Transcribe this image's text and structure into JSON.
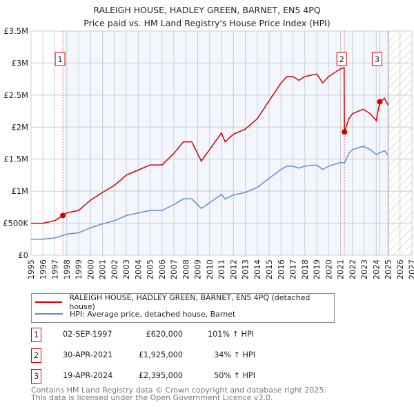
{
  "chart_data": {
    "type": "line",
    "title": "RALEIGH HOUSE, HADLEY GREEN, BARNET, EN5 4PQ",
    "subtitle": "Price paid vs. HM Land Registry's House Price Index (HPI)",
    "xlim": [
      1995,
      2027
    ],
    "ylim": [
      0,
      3500000
    ],
    "x_ticks": [
      "1995",
      "1996",
      "1997",
      "1998",
      "1999",
      "2000",
      "2001",
      "2002",
      "2003",
      "2004",
      "2005",
      "2006",
      "2007",
      "2008",
      "2009",
      "2010",
      "2011",
      "2012",
      "2013",
      "2014",
      "2015",
      "2016",
      "2017",
      "2018",
      "2019",
      "2020",
      "2021",
      "2022",
      "2023",
      "2024",
      "2025",
      "2026",
      "2027"
    ],
    "y_ticks": [
      {
        "v": 0,
        "label": "£0"
      },
      {
        "v": 500000,
        "label": "£500K"
      },
      {
        "v": 1000000,
        "label": "£1M"
      },
      {
        "v": 1500000,
        "label": "£1.5M"
      },
      {
        "v": 2000000,
        "label": "£2M"
      },
      {
        "v": 2500000,
        "label": "£2.5M"
      },
      {
        "v": 3000000,
        "label": "£3M"
      },
      {
        "v": 3500000,
        "label": "£3.5M"
      }
    ],
    "grid": true,
    "forecast_from": 2025.0,
    "series": [
      {
        "name": "RALEIGH HOUSE, HADLEY GREEN, BARNET, EN5 4PQ (detached house)",
        "color": "#cc0000",
        "x": [
          1995,
          1996,
          1997,
          1997.67,
          1998,
          1999,
          2000,
          2001,
          2002,
          2003,
          2004,
          2005,
          2006,
          2007,
          2007.8,
          2008.5,
          2009.3,
          2010,
          2011,
          2011.3,
          2012,
          2013,
          2014,
          2015,
          2016,
          2016.5,
          2017,
          2017.5,
          2018,
          2019,
          2019.5,
          2020,
          2021,
          2021.3,
          2021.33,
          2021.7,
          2022,
          2022.9,
          2023.5,
          2024,
          2024.3,
          2024.7,
          2025.0
        ],
        "y": [
          500000,
          500000,
          540000,
          620000,
          660000,
          700000,
          860000,
          980000,
          1090000,
          1250000,
          1330000,
          1410000,
          1410000,
          1590000,
          1770000,
          1770000,
          1470000,
          1650000,
          1910000,
          1770000,
          1890000,
          1970000,
          2130000,
          2410000,
          2690000,
          2790000,
          2790000,
          2730000,
          2790000,
          2830000,
          2690000,
          2790000,
          2910000,
          2930000,
          1925000,
          2130000,
          2210000,
          2280000,
          2210000,
          2100000,
          2395000,
          2450000,
          2340000
        ]
      },
      {
        "name": "HPI: Average price, detached house, Barnet",
        "color": "#5b8fd6",
        "x": [
          1995,
          1996,
          1997,
          1997.67,
          1998,
          1999,
          2000,
          2001,
          2002,
          2003,
          2004,
          2005,
          2006,
          2007,
          2007.8,
          2008.5,
          2009.3,
          2010,
          2011,
          2011.3,
          2012,
          2013,
          2014,
          2015,
          2016,
          2016.5,
          2017,
          2017.5,
          2018,
          2019,
          2019.5,
          2020,
          2021,
          2021.33,
          2021.7,
          2022,
          2022.9,
          2023.5,
          2024,
          2024.3,
          2024.7,
          2025.0
        ],
        "y": [
          250000,
          250000,
          270000,
          308000,
          330000,
          350000,
          430000,
          490000,
          540000,
          620000,
          660000,
          700000,
          700000,
          790000,
          880000,
          880000,
          730000,
          820000,
          950000,
          880000,
          940000,
          980000,
          1060000,
          1200000,
          1340000,
          1390000,
          1390000,
          1360000,
          1390000,
          1410000,
          1340000,
          1390000,
          1450000,
          1440000,
          1590000,
          1650000,
          1700000,
          1650000,
          1570000,
          1600000,
          1630000,
          1560000
        ]
      }
    ],
    "sales": [
      {
        "id": "1",
        "x": 1997.67,
        "y": 620000,
        "date": "02-SEP-1997",
        "price": "£620,000",
        "hpi": "101% ↑ HPI"
      },
      {
        "id": "2",
        "x": 2021.33,
        "y": 1925000,
        "date": "30-APR-2021",
        "price": "£1,925,000",
        "hpi": "34% ↑ HPI"
      },
      {
        "id": "3",
        "x": 2024.3,
        "y": 2395000,
        "date": "19-APR-2024",
        "price": "£2,395,000",
        "hpi": "50% ↑ HPI"
      }
    ]
  },
  "legend": {
    "property": "RALEIGH HOUSE, HADLEY GREEN, BARNET, EN5 4PQ (detached house)",
    "hpi": "HPI: Average price, detached house, Barnet"
  },
  "footer": {
    "line1": "Contains HM Land Registry data © Crown copyright and database right 2025.",
    "line2": "This data is licensed under the Open Government Licence v3.0."
  }
}
